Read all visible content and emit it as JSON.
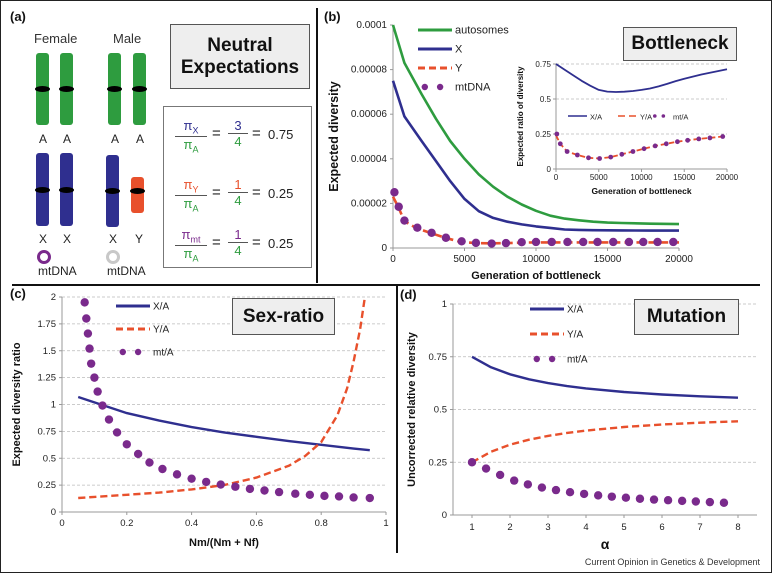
{
  "footer": "Current Opinion in Genetics & Development",
  "colors": {
    "autosome": "#2e9c3f",
    "x": "#2f2f8f",
    "y": "#e8502c",
    "mt": "#7a2a8c",
    "mt_male": "#c8c8c8",
    "grid": "#bbbbbb"
  },
  "panel_a": {
    "label": "(a)",
    "title_line1": "Neutral",
    "title_line2": "Expectations",
    "female_label": "Female",
    "male_label": "Male",
    "autosome_labels": [
      "A",
      "A",
      "A",
      "A"
    ],
    "sex_labels": [
      "X",
      "X",
      "X",
      "Y"
    ],
    "mtdna_female": "mtDNA",
    "mtdna_male": "mtDNA",
    "equations": [
      {
        "num_sym": "π",
        "num_sub": "X",
        "den_sym": "π",
        "den_sub": "A",
        "frac_num": "3",
        "frac_den": "4",
        "value": "0.75",
        "color": "x"
      },
      {
        "num_sym": "π",
        "num_sub": "Y",
        "den_sym": "π",
        "den_sub": "A",
        "frac_num": "1",
        "frac_den": "4",
        "value": "0.25",
        "color": "y"
      },
      {
        "num_sym": "π",
        "num_sub": "mt",
        "den_sym": "π",
        "den_sub": "A",
        "frac_num": "1",
        "frac_den": "4",
        "value": "0.25",
        "color": "mt"
      }
    ],
    "equals": "="
  },
  "chart_data": [
    {
      "id": "b_main",
      "panel_label": "(b)",
      "box_title": "Bottleneck",
      "type": "line",
      "xlabel": "Generation of bottleneck",
      "ylabel": "Expected diversity",
      "xlim": [
        0,
        20000
      ],
      "ylim": [
        0,
        0.0001
      ],
      "xticks": [
        0,
        5000,
        10000,
        15000,
        20000
      ],
      "xtick_labels": [
        "0",
        "5000",
        "10000",
        "15000",
        "20000"
      ],
      "yticks": [
        0,
        2e-05,
        4e-05,
        6e-05,
        8e-05,
        0.0001
      ],
      "ytick_labels": [
        "0",
        "0.00002",
        "0.00004",
        "0.00006",
        "0.00008",
        "0.0001"
      ],
      "grid": false,
      "legend_position": "top-left",
      "series": [
        {
          "name": "autosomes",
          "style": "solid",
          "color": "autosome",
          "x": [
            0,
            800,
            2000,
            3000,
            4000,
            5000,
            6000,
            7000,
            8000,
            9000,
            10000,
            11000,
            12000,
            13000,
            14000,
            15000,
            16000,
            18000,
            20000
          ],
          "y": [
            0.0001,
            8.3e-05,
            6.9e-05,
            5.8e-05,
            4.8e-05,
            4e-05,
            3.3e-05,
            2.75e-05,
            2.3e-05,
            1.95e-05,
            1.67e-05,
            1.45e-05,
            1.32e-05,
            1.24e-05,
            1.18e-05,
            1.14e-05,
            1.12e-05,
            1.09e-05,
            1.07e-05
          ]
        },
        {
          "name": "X",
          "style": "solid",
          "color": "x",
          "x": [
            0,
            800,
            2000,
            3000,
            4000,
            5000,
            6000,
            7000,
            8000,
            9000,
            10000,
            11000,
            12000,
            13000,
            14000,
            16000,
            18000,
            20000
          ],
          "y": [
            7.5e-05,
            5.9e-05,
            4.8e-05,
            3.9e-05,
            3e-05,
            2.2e-05,
            1.65e-05,
            1.35e-05,
            1.18e-05,
            1.06e-05,
            9.7e-06,
            9e-06,
            8.3e-06,
            8.1e-06,
            8e-06,
            7.9e-06,
            7.8e-06,
            7.8e-06
          ]
        },
        {
          "name": "Y",
          "style": "dashed",
          "color": "y",
          "x": [
            0,
            400,
            800,
            1600,
            2700,
            3700,
            4700,
            5800,
            6800,
            8000,
            9000,
            10000,
            12000,
            14000,
            16000,
            18000,
            20000
          ],
          "y": [
            2.3e-05,
            1.8e-05,
            1.2e-05,
            9e-06,
            6.6e-06,
            4.5e-06,
            2.8e-06,
            2.2e-06,
            2.1e-06,
            2.2e-06,
            2.4e-06,
            2.5e-06,
            2.5e-06,
            2.5e-06,
            2.5e-06,
            2.5e-06,
            2.5e-06
          ]
        },
        {
          "name": "mtDNA",
          "style": "dots",
          "color": "mt",
          "x": [
            100,
            400,
            800,
            1700,
            2700,
            3700,
            4800,
            5800,
            6900,
            7900,
            9000,
            10000,
            11100,
            12200,
            13300,
            14300,
            15400,
            16500,
            17500,
            18500,
            19600
          ],
          "y": [
            2.5e-05,
            1.85e-05,
            1.23e-05,
            9.1e-06,
            6.8e-06,
            4.6e-06,
            3e-06,
            2.3e-06,
            2e-06,
            2.2e-06,
            2.6e-06,
            2.7e-06,
            2.7e-06,
            2.7e-06,
            2.7e-06,
            2.7e-06,
            2.7e-06,
            2.7e-06,
            2.7e-06,
            2.7e-06,
            2.7e-06
          ]
        }
      ]
    },
    {
      "id": "b_inset",
      "type": "line",
      "xlabel": "Generation of bottleneck",
      "ylabel": "Expected ratio of diversity",
      "xlim": [
        0,
        20000
      ],
      "ylim": [
        0,
        0.75
      ],
      "xticks": [
        0,
        5000,
        10000,
        15000,
        20000
      ],
      "xtick_labels": [
        "0",
        "5000",
        "10000",
        "15000",
        "20000"
      ],
      "yticks": [
        0,
        0.25,
        0.5,
        0.75
      ],
      "ytick_labels": [
        "0",
        "0.25",
        "0.5",
        "0.75"
      ],
      "grid": true,
      "legend_position": "middle",
      "series": [
        {
          "name": "X/A",
          "style": "solid",
          "color": "x",
          "x": [
            0,
            1000,
            2000,
            3000,
            4000,
            5000,
            6000,
            7000,
            8000,
            9000,
            10000,
            11000,
            12000,
            13000,
            14000,
            15000,
            16000,
            17000,
            18000,
            19000,
            20000
          ],
          "y": [
            0.75,
            0.71,
            0.67,
            0.63,
            0.595,
            0.565,
            0.553,
            0.55,
            0.552,
            0.557,
            0.565,
            0.575,
            0.59,
            0.608,
            0.628,
            0.645,
            0.66,
            0.675,
            0.688,
            0.7,
            0.712
          ]
        },
        {
          "name": "Y/A",
          "style": "dashed",
          "color": "y",
          "x": [
            0,
            500,
            1300,
            2500,
            3800,
            5100,
            6400,
            7700,
            9000,
            10300,
            11600,
            12900,
            14200,
            15400,
            16700,
            18000,
            19500
          ],
          "y": [
            0.24,
            0.18,
            0.125,
            0.1,
            0.08,
            0.075,
            0.085,
            0.105,
            0.125,
            0.145,
            0.165,
            0.18,
            0.195,
            0.205,
            0.215,
            0.222,
            0.232
          ]
        },
        {
          "name": "mt/A",
          "style": "dots",
          "color": "mt",
          "x": [
            100,
            500,
            1300,
            2500,
            3800,
            5100,
            6400,
            7700,
            9000,
            10300,
            11600,
            12900,
            14200,
            15400,
            16700,
            18000,
            19500
          ],
          "y": [
            0.25,
            0.18,
            0.125,
            0.1,
            0.08,
            0.075,
            0.085,
            0.105,
            0.125,
            0.145,
            0.165,
            0.18,
            0.195,
            0.205,
            0.215,
            0.222,
            0.232
          ]
        }
      ]
    },
    {
      "id": "c",
      "panel_label": "(c)",
      "box_title": "Sex-ratio",
      "type": "line",
      "xlabel": "Nm/(Nm + Nf)",
      "ylabel": "Expected diversity ratio",
      "xlim": [
        0,
        1
      ],
      "ylim": [
        0,
        2
      ],
      "xticks": [
        0,
        0.2,
        0.4,
        0.6,
        0.8,
        1
      ],
      "xtick_labels": [
        "0",
        "0.2",
        "0.4",
        "0.6",
        "0.8",
        "1"
      ],
      "yticks": [
        0,
        0.25,
        0.5,
        0.75,
        1,
        1.25,
        1.5,
        1.75,
        2
      ],
      "ytick_labels": [
        "0",
        "0.25",
        "0.5",
        "0.75",
        "1",
        "1.25",
        "1.5",
        "1.75",
        "2"
      ],
      "grid": true,
      "legend_position": "top-left",
      "series": [
        {
          "name": "X/A",
          "style": "solid",
          "color": "x",
          "x": [
            0.05,
            0.1,
            0.2,
            0.3,
            0.4,
            0.5,
            0.6,
            0.7,
            0.8,
            0.9,
            0.95
          ],
          "y": [
            1.07,
            1.02,
            0.92,
            0.85,
            0.79,
            0.74,
            0.7,
            0.66,
            0.625,
            0.59,
            0.575
          ]
        },
        {
          "name": "Y/A",
          "style": "dashed",
          "color": "y",
          "x": [
            0.05,
            0.1,
            0.2,
            0.3,
            0.4,
            0.5,
            0.6,
            0.7,
            0.75,
            0.8,
            0.85,
            0.88,
            0.9,
            0.92,
            0.935
          ],
          "y": [
            0.13,
            0.14,
            0.16,
            0.18,
            0.21,
            0.25,
            0.32,
            0.43,
            0.52,
            0.65,
            0.9,
            1.15,
            1.4,
            1.7,
            2.0
          ]
        },
        {
          "name": "mt/A",
          "style": "dots",
          "color": "mt",
          "x": [
            0.07,
            0.075,
            0.08,
            0.085,
            0.09,
            0.1,
            0.11,
            0.125,
            0.145,
            0.17,
            0.2,
            0.235,
            0.27,
            0.31,
            0.355,
            0.4,
            0.445,
            0.49,
            0.535,
            0.58,
            0.625,
            0.67,
            0.72,
            0.765,
            0.81,
            0.855,
            0.9,
            0.95
          ],
          "y": [
            1.95,
            1.8,
            1.66,
            1.52,
            1.38,
            1.25,
            1.12,
            0.99,
            0.86,
            0.74,
            0.63,
            0.54,
            0.46,
            0.4,
            0.35,
            0.31,
            0.28,
            0.255,
            0.235,
            0.215,
            0.2,
            0.185,
            0.17,
            0.16,
            0.15,
            0.145,
            0.135,
            0.13
          ]
        }
      ]
    },
    {
      "id": "d",
      "panel_label": "(d)",
      "box_title": "Mutation",
      "type": "line",
      "xlabel": "α",
      "ylabel": "Uncorrected relative diversity",
      "xlim": [
        0.5,
        8.5
      ],
      "ylim": [
        0,
        1
      ],
      "xticks": [
        1,
        2,
        3,
        4,
        5,
        6,
        7,
        8
      ],
      "xtick_labels": [
        "1",
        "2",
        "3",
        "4",
        "5",
        "6",
        "7",
        "8"
      ],
      "yticks": [
        0,
        0.25,
        0.5,
        0.75,
        1
      ],
      "ytick_labels": [
        "0",
        "0.25",
        "0.5",
        "0.75",
        "1"
      ],
      "grid": true,
      "legend_position": "top-center",
      "series": [
        {
          "name": "X/A",
          "style": "solid",
          "color": "x",
          "x": [
            1,
            1.5,
            2,
            2.5,
            3,
            3.5,
            4,
            5,
            6,
            7,
            8
          ],
          "y": [
            0.75,
            0.7,
            0.667,
            0.643,
            0.625,
            0.611,
            0.6,
            0.583,
            0.571,
            0.5625,
            0.556
          ]
        },
        {
          "name": "Y/A",
          "style": "dashed",
          "color": "y",
          "x": [
            1,
            1.5,
            2,
            2.5,
            3,
            3.5,
            4,
            5,
            6,
            7,
            8
          ],
          "y": [
            0.25,
            0.3,
            0.333,
            0.357,
            0.375,
            0.389,
            0.4,
            0.417,
            0.429,
            0.4375,
            0.444
          ]
        },
        {
          "name": "mt/A",
          "style": "dots",
          "color": "mt",
          "x": [
            1,
            1.37,
            1.74,
            2.11,
            2.47,
            2.84,
            3.21,
            3.58,
            3.95,
            4.32,
            4.68,
            5.05,
            5.42,
            5.79,
            6.16,
            6.53,
            6.89,
            7.26,
            7.63
          ],
          "y": [
            0.25,
            0.22,
            0.19,
            0.163,
            0.145,
            0.13,
            0.118,
            0.108,
            0.1,
            0.093,
            0.087,
            0.082,
            0.077,
            0.073,
            0.07,
            0.067,
            0.064,
            0.061,
            0.058
          ]
        }
      ]
    }
  ]
}
